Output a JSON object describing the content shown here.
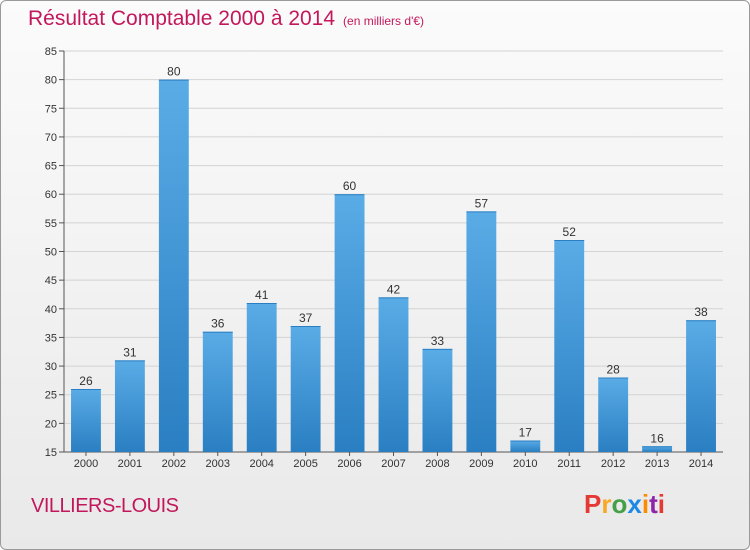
{
  "chart_data": {
    "type": "bar",
    "title": "Résultat Comptable 2000 à 2014",
    "subtitle": "(en milliers d'€)",
    "categories": [
      "2000",
      "2001",
      "2002",
      "2003",
      "2004",
      "2005",
      "2006",
      "2007",
      "2008",
      "2009",
      "2010",
      "2011",
      "2012",
      "2013",
      "2014"
    ],
    "values": [
      26,
      31,
      80,
      36,
      41,
      37,
      60,
      42,
      33,
      57,
      17,
      52,
      28,
      16,
      38
    ],
    "ylim": [
      15,
      85
    ],
    "yticks": [
      15,
      20,
      25,
      30,
      35,
      40,
      45,
      50,
      55,
      60,
      65,
      70,
      75,
      80,
      85
    ],
    "grid": true,
    "xlabel": "",
    "ylabel": "",
    "bar_color_top": "#5aace6",
    "bar_color_bottom": "#2a7fc2"
  },
  "location": "VILLIERS-LOUIS",
  "brand": {
    "letters": [
      "P",
      "r",
      "o",
      "x",
      "i",
      "t",
      "i"
    ],
    "colors": [
      "#e53935",
      "#f9a825",
      "#43a047",
      "#1e88e5",
      "#fb8c00",
      "#8e24aa",
      "#e53935"
    ]
  }
}
